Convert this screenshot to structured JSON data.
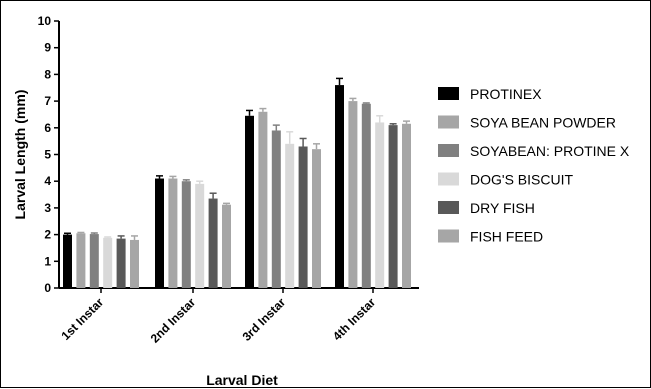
{
  "chart_data": {
    "type": "bar",
    "title": "",
    "xlabel": "Larval Diet",
    "ylabel": "Larval Length (mm)",
    "ylim": [
      0,
      10
    ],
    "yticks": [
      0,
      1,
      2,
      3,
      4,
      5,
      6,
      7,
      8,
      9,
      10
    ],
    "categories": [
      "1st Instar",
      "2nd Instar",
      "3rd Instar",
      "4th Instar"
    ],
    "legend_position": "right",
    "grid": false,
    "error_bars": true,
    "series": [
      {
        "name": "PROTINEX",
        "color": "#000000",
        "values": [
          2.0,
          4.1,
          6.45,
          7.6
        ],
        "errors": [
          0.05,
          0.1,
          0.2,
          0.25
        ]
      },
      {
        "name": "SOYA BEAN POWDER",
        "color": "#a6a6a6",
        "values": [
          2.05,
          4.1,
          6.6,
          7.0
        ],
        "errors": [
          0.03,
          0.08,
          0.12,
          0.1
        ]
      },
      {
        "name": "SOYABEAN: PROTINE X",
        "color": "#808080",
        "values": [
          2.02,
          4.0,
          5.9,
          6.9
        ],
        "errors": [
          0.04,
          0.05,
          0.2,
          0.03
        ]
      },
      {
        "name": "DOG'S BISCUIT",
        "color": "#d9d9d9",
        "values": [
          1.88,
          3.9,
          5.4,
          6.2
        ],
        "errors": [
          0.03,
          0.1,
          0.45,
          0.25
        ]
      },
      {
        "name": "DRY FISH",
        "color": "#595959",
        "values": [
          1.85,
          3.35,
          5.3,
          6.1
        ],
        "errors": [
          0.1,
          0.2,
          0.3,
          0.05
        ]
      },
      {
        "name": "FISH FEED",
        "color": "#a6a6a6",
        "values": [
          1.8,
          3.12,
          5.2,
          6.15
        ],
        "errors": [
          0.15,
          0.05,
          0.2,
          0.1
        ]
      }
    ]
  }
}
